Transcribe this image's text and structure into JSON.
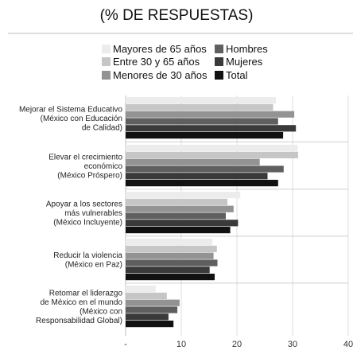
{
  "chart_data": {
    "type": "bar",
    "orientation": "horizontal",
    "title": "(% DE RESPUESTAS)",
    "xlim": [
      0,
      40
    ],
    "xticks": [
      {
        "value": 0,
        "label": "-"
      },
      {
        "value": 10,
        "label": "10"
      },
      {
        "value": 20,
        "label": "20"
      },
      {
        "value": 30,
        "label": "30"
      },
      {
        "value": 40,
        "label": "40"
      }
    ],
    "grid": true,
    "legend_position": "top",
    "categories": [
      [
        "Mejorar el Sistema Educativo",
        "(México con Educación",
        "de Calidad)"
      ],
      [
        "Elevar el crecimiento",
        "económico",
        "(México Próspero)"
      ],
      [
        "Apoyar a los sectores",
        "más vulnerables",
        "(México Incluyente)"
      ],
      [
        "Reducir la violencia",
        "(México en Paz)"
      ],
      [
        "Retomar el liderazgo",
        "de México en el mundo",
        "(México con",
        "Responsabilidad Global)"
      ]
    ],
    "series": [
      {
        "name": "Mayores de 65 años",
        "color": "#ececec",
        "values": [
          27.0,
          30.9,
          20.6,
          15.6,
          5.4
        ]
      },
      {
        "name": "Entre 30 y 65 años",
        "color": "#c6c6c6",
        "values": [
          26.5,
          31.0,
          18.3,
          16.4,
          7.4
        ]
      },
      {
        "name": "Menores de 30 años",
        "color": "#939393",
        "values": [
          30.3,
          24.1,
          19.4,
          15.8,
          9.7
        ]
      },
      {
        "name": "Hombres",
        "color": "#5f5f5f",
        "values": [
          27.4,
          28.4,
          18.0,
          16.5,
          9.3
        ]
      },
      {
        "name": "Mujeres",
        "color": "#3a3a3a",
        "values": [
          30.6,
          25.5,
          20.2,
          15.1,
          7.7
        ]
      },
      {
        "name": "Total",
        "color": "#111111",
        "values": [
          28.3,
          27.4,
          18.8,
          16.0,
          8.6
        ]
      }
    ]
  }
}
